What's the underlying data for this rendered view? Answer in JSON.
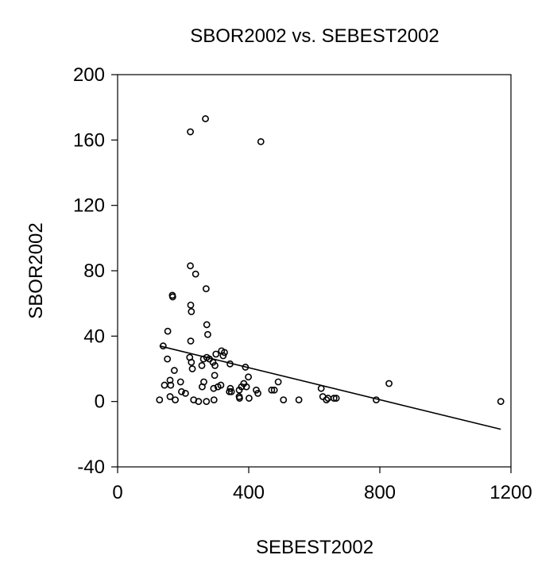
{
  "chart_data": {
    "type": "scatter",
    "title": "SBOR2002 vs. SEBEST2002",
    "xlabel": "SEBEST2002",
    "ylabel": "SBOR2002",
    "xlim": [
      0,
      1200
    ],
    "ylim": [
      -40,
      200
    ],
    "xticks": [
      0,
      400,
      800,
      1200
    ],
    "yticks": [
      -40,
      0,
      40,
      80,
      120,
      160,
      200
    ],
    "xtick_labels": [
      "0",
      "400",
      "800",
      "1200"
    ],
    "ytick_labels": [
      "-40",
      "0",
      "40",
      "80",
      "120",
      "160",
      "200"
    ],
    "grid": false,
    "marker": "open-circle",
    "points": [
      {
        "x": 222,
        "y": 165
      },
      {
        "x": 268,
        "y": 173
      },
      {
        "x": 437,
        "y": 159
      },
      {
        "x": 222,
        "y": 83
      },
      {
        "x": 238,
        "y": 78
      },
      {
        "x": 270,
        "y": 69
      },
      {
        "x": 167,
        "y": 65
      },
      {
        "x": 168,
        "y": 64
      },
      {
        "x": 223,
        "y": 59
      },
      {
        "x": 225,
        "y": 55
      },
      {
        "x": 272,
        "y": 47
      },
      {
        "x": 275,
        "y": 41
      },
      {
        "x": 153,
        "y": 43
      },
      {
        "x": 223,
        "y": 37
      },
      {
        "x": 139,
        "y": 34
      },
      {
        "x": 152,
        "y": 26
      },
      {
        "x": 220,
        "y": 27
      },
      {
        "x": 225,
        "y": 24
      },
      {
        "x": 228,
        "y": 20
      },
      {
        "x": 173,
        "y": 19
      },
      {
        "x": 257,
        "y": 22
      },
      {
        "x": 262,
        "y": 26
      },
      {
        "x": 272,
        "y": 27
      },
      {
        "x": 280,
        "y": 26
      },
      {
        "x": 291,
        "y": 24
      },
      {
        "x": 297,
        "y": 22
      },
      {
        "x": 300,
        "y": 29
      },
      {
        "x": 317,
        "y": 31
      },
      {
        "x": 326,
        "y": 30
      },
      {
        "x": 322,
        "y": 28
      },
      {
        "x": 343,
        "y": 23
      },
      {
        "x": 390,
        "y": 21
      },
      {
        "x": 296,
        "y": 16
      },
      {
        "x": 399,
        "y": 15
      },
      {
        "x": 490,
        "y": 12
      },
      {
        "x": 828,
        "y": 11
      },
      {
        "x": 160,
        "y": 13
      },
      {
        "x": 143,
        "y": 10
      },
      {
        "x": 162,
        "y": 10
      },
      {
        "x": 192,
        "y": 12
      },
      {
        "x": 263,
        "y": 12
      },
      {
        "x": 258,
        "y": 9
      },
      {
        "x": 293,
        "y": 8
      },
      {
        "x": 306,
        "y": 9
      },
      {
        "x": 315,
        "y": 10
      },
      {
        "x": 344,
        "y": 8
      },
      {
        "x": 341,
        "y": 6
      },
      {
        "x": 347,
        "y": 6
      },
      {
        "x": 371,
        "y": 7
      },
      {
        "x": 378,
        "y": 9
      },
      {
        "x": 385,
        "y": 11
      },
      {
        "x": 393,
        "y": 9
      },
      {
        "x": 423,
        "y": 7
      },
      {
        "x": 428,
        "y": 5
      },
      {
        "x": 470,
        "y": 7
      },
      {
        "x": 478,
        "y": 7
      },
      {
        "x": 621,
        "y": 8
      },
      {
        "x": 195,
        "y": 6
      },
      {
        "x": 207,
        "y": 5
      },
      {
        "x": 160,
        "y": 3
      },
      {
        "x": 176,
        "y": 1
      },
      {
        "x": 128,
        "y": 1
      },
      {
        "x": 232,
        "y": 1
      },
      {
        "x": 247,
        "y": 0
      },
      {
        "x": 271,
        "y": 0
      },
      {
        "x": 294,
        "y": 1
      },
      {
        "x": 371,
        "y": 3
      },
      {
        "x": 372,
        "y": 2
      },
      {
        "x": 401,
        "y": 2
      },
      {
        "x": 506,
        "y": 1
      },
      {
        "x": 553,
        "y": 1
      },
      {
        "x": 626,
        "y": 3
      },
      {
        "x": 637,
        "y": 1
      },
      {
        "x": 642,
        "y": 2
      },
      {
        "x": 660,
        "y": 2
      },
      {
        "x": 667,
        "y": 2
      },
      {
        "x": 789,
        "y": 1
      },
      {
        "x": 1169,
        "y": 0
      }
    ],
    "fit_line": {
      "type": "linear",
      "x": [
        128,
        1169
      ],
      "y": [
        34,
        -17
      ]
    }
  }
}
